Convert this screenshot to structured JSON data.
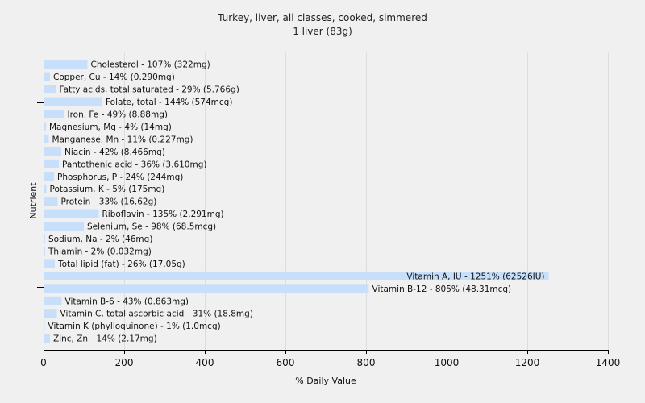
{
  "chart_data": {
    "type": "bar",
    "orientation": "horizontal",
    "title": "Turkey, liver, all classes, cooked, simmered",
    "subtitle": "1 liver (83g)",
    "xlabel": "% Daily Value",
    "ylabel": "Nutrient",
    "xlim": [
      0,
      1400
    ],
    "xticks": [
      0,
      200,
      400,
      600,
      800,
      1000,
      1200,
      1400
    ],
    "grid": true,
    "bar_color": "#c7dffa",
    "categories": [
      "Cholesterol",
      "Copper, Cu",
      "Fatty acids, total saturated",
      "Folate, total",
      "Iron, Fe",
      "Magnesium, Mg",
      "Manganese, Mn",
      "Niacin",
      "Pantothenic acid",
      "Phosphorus, P",
      "Potassium, K",
      "Protein",
      "Riboflavin",
      "Selenium, Se",
      "Sodium, Na",
      "Thiamin",
      "Total lipid (fat)",
      "Vitamin A, IU",
      "Vitamin B-12",
      "Vitamin B-6",
      "Vitamin C, total ascorbic acid",
      "Vitamin K (phylloquinone)",
      "Zinc, Zn"
    ],
    "values": [
      107,
      14,
      29,
      144,
      49,
      4,
      11,
      42,
      36,
      24,
      5,
      33,
      135,
      98,
      2,
      2,
      26,
      1251,
      805,
      43,
      31,
      1,
      14
    ],
    "labels": [
      "Cholesterol - 107% (322mg)",
      "Copper, Cu - 14% (0.290mg)",
      "Fatty acids, total saturated - 29% (5.766g)",
      "Folate, total - 144% (574mcg)",
      "Iron, Fe - 49% (8.88mg)",
      "Magnesium, Mg - 4% (14mg)",
      "Manganese, Mn - 11% (0.227mg)",
      "Niacin - 42% (8.466mg)",
      "Pantothenic acid - 36% (3.610mg)",
      "Phosphorus, P - 24% (244mg)",
      "Potassium, K - 5% (175mg)",
      "Protein - 33% (16.62g)",
      "Riboflavin - 135% (2.291mg)",
      "Selenium, Se - 98% (68.5mcg)",
      "Sodium, Na - 2% (46mg)",
      "Thiamin - 2% (0.032mg)",
      "Total lipid (fat) - 26% (17.05g)",
      "Vitamin A, IU - 1251% (62526IU)",
      "Vitamin B-12 - 805% (48.31mcg)",
      "Vitamin B-6 - 43% (0.863mg)",
      "Vitamin C, total ascorbic acid - 31% (18.8mg)",
      "Vitamin K (phylloquinone) - 1% (1.0mcg)",
      "Zinc, Zn - 14% (2.17mg)"
    ]
  }
}
